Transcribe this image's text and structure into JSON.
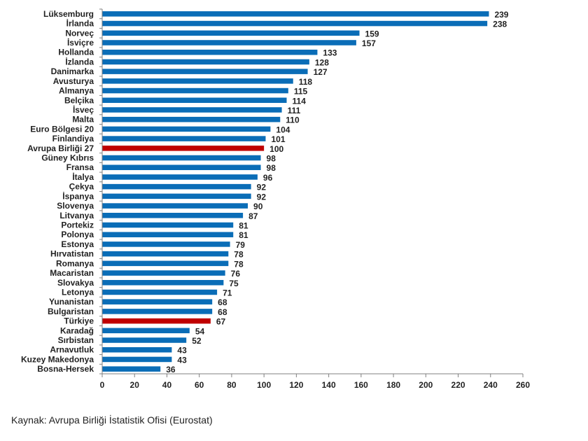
{
  "chart_data": {
    "type": "bar",
    "orientation": "horizontal",
    "categories": [
      "Lüksemburg",
      "İrlanda",
      "Norveç",
      "İsviçre",
      "Hollanda",
      "İzlanda",
      "Danimarka",
      "Avusturya",
      "Almanya",
      "Belçika",
      "İsveç",
      "Malta",
      "Euro Bölgesi 20",
      "Finlandiya",
      "Avrupa Birliği 27",
      "Güney Kıbrıs",
      "Fransa",
      "İtalya",
      "Çekya",
      "İspanya",
      "Slovenya",
      "Litvanya",
      "Portekiz",
      "Polonya",
      "Estonya",
      "Hırvatistan",
      "Romanya",
      "Macaristan",
      "Slovakya",
      "Letonya",
      "Yunanistan",
      "Bulgaristan",
      "Türkiye",
      "Karadağ",
      "Sırbistan",
      "Arnavutluk",
      "Kuzey Makedonya",
      "Bosna-Hersek"
    ],
    "values": [
      239,
      238,
      159,
      157,
      133,
      128,
      127,
      118,
      115,
      114,
      111,
      110,
      104,
      101,
      100,
      98,
      98,
      96,
      92,
      92,
      90,
      87,
      81,
      81,
      79,
      78,
      78,
      76,
      75,
      71,
      68,
      68,
      67,
      54,
      52,
      43,
      43,
      36
    ],
    "highlight": [
      "Avrupa Birliği 27",
      "Türkiye"
    ],
    "xlim": [
      0,
      260
    ],
    "xticks": [
      0,
      20,
      40,
      60,
      80,
      100,
      120,
      140,
      160,
      180,
      200,
      220,
      240,
      260
    ],
    "grid": false,
    "legend": "none",
    "colors": {
      "bar": "#0a6db7",
      "highlight": "#c00000",
      "axis": "#808080"
    }
  },
  "source_text": "Kaynak: Avrupa Birliği İstatistik Ofisi (Eurostat)"
}
